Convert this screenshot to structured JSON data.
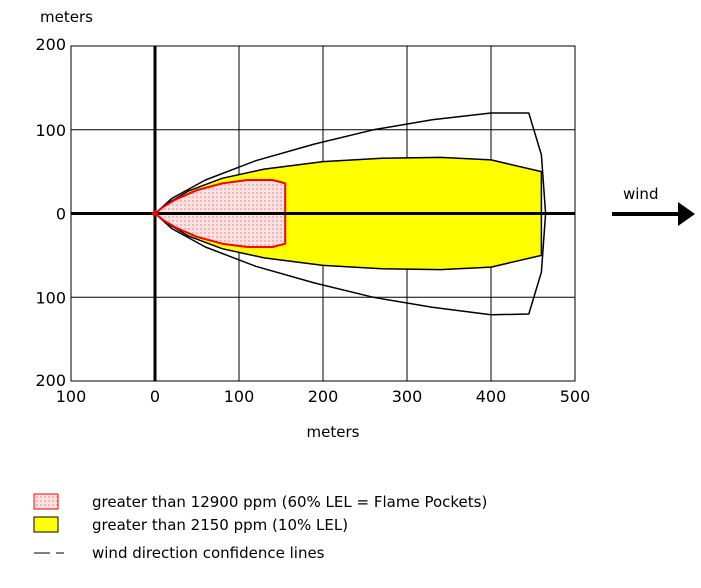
{
  "chart_data": {
    "type": "area",
    "xlabel": "meters",
    "ylabel": "meters",
    "xlim": [
      -100,
      500
    ],
    "ylim": [
      -200,
      200
    ],
    "x_ticks": [
      -100,
      0,
      100,
      200,
      300,
      400,
      500
    ],
    "x_tick_labels": [
      "100",
      "0",
      "100",
      "200",
      "300",
      "400",
      "500"
    ],
    "y_ticks": [
      200,
      100,
      0,
      -100,
      -200
    ],
    "y_tick_labels": [
      "200",
      "100",
      "0",
      "100",
      "200"
    ],
    "grid": true,
    "legend_position": "bottom-left",
    "wind_label": "wind",
    "series": [
      {
        "name": "greater than 12900 ppm (60% LEL = Flame Pockets)",
        "style": "red-dotted",
        "fill": "#ffd9d9",
        "stroke": "#ff0000",
        "points": [
          [
            0,
            0
          ],
          [
            10,
            8
          ],
          [
            25,
            17
          ],
          [
            50,
            28
          ],
          [
            80,
            36
          ],
          [
            110,
            40
          ],
          [
            140,
            40
          ],
          [
            155,
            36
          ],
          [
            155,
            -36
          ],
          [
            140,
            -40
          ],
          [
            110,
            -40
          ],
          [
            80,
            -36
          ],
          [
            50,
            -28
          ],
          [
            25,
            -17
          ],
          [
            10,
            -8
          ]
        ]
      },
      {
        "name": "greater than 2150 ppm (10% LEL)",
        "style": "yellow",
        "fill": "#ffff00",
        "stroke": "#000000",
        "points": [
          [
            0,
            0
          ],
          [
            15,
            12
          ],
          [
            40,
            27
          ],
          [
            80,
            42
          ],
          [
            130,
            53
          ],
          [
            200,
            62
          ],
          [
            270,
            66
          ],
          [
            340,
            67
          ],
          [
            400,
            64
          ],
          [
            460,
            50
          ],
          [
            460,
            -50
          ],
          [
            400,
            -64
          ],
          [
            340,
            -67
          ],
          [
            270,
            -66
          ],
          [
            200,
            -62
          ],
          [
            130,
            -53
          ],
          [
            80,
            -42
          ],
          [
            40,
            -27
          ],
          [
            15,
            -12
          ]
        ]
      },
      {
        "name": "wind direction confidence lines",
        "style": "black-line",
        "fill": "none",
        "stroke": "#000000",
        "points": [
          [
            0,
            0
          ],
          [
            20,
            18
          ],
          [
            60,
            40
          ],
          [
            120,
            63
          ],
          [
            190,
            83
          ],
          [
            260,
            100
          ],
          [
            330,
            112
          ],
          [
            400,
            120
          ],
          [
            445,
            120
          ],
          [
            460,
            70
          ],
          [
            465,
            0
          ],
          [
            460,
            -70
          ],
          [
            445,
            -120
          ],
          [
            400,
            -121
          ],
          [
            330,
            -112
          ],
          [
            260,
            -100
          ],
          [
            190,
            -83
          ],
          [
            120,
            -63
          ],
          [
            60,
            -40
          ],
          [
            20,
            -18
          ]
        ]
      }
    ]
  }
}
